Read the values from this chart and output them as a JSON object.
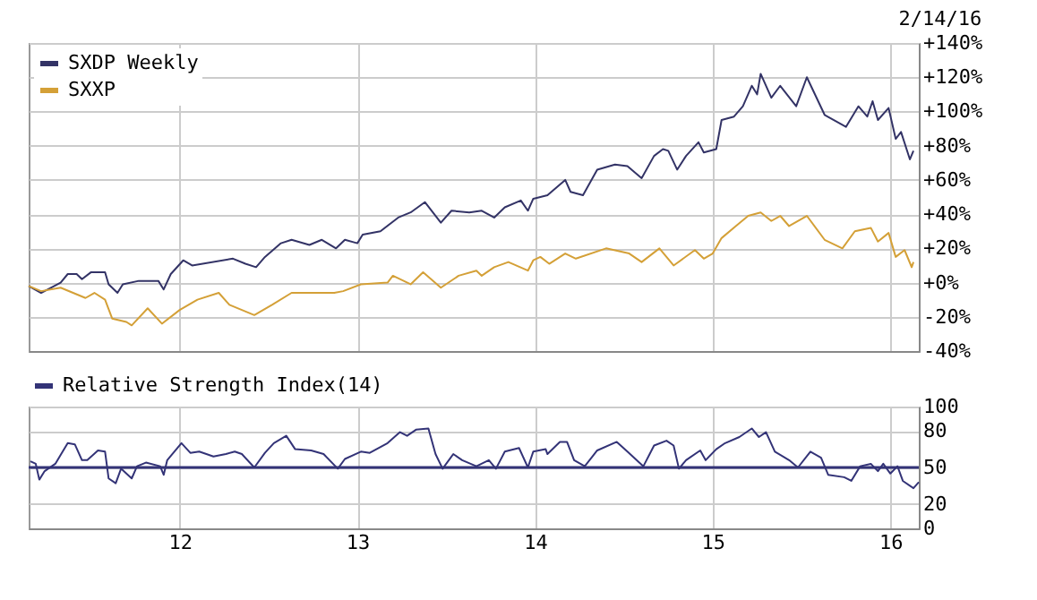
{
  "chart_data": [
    {
      "type": "line",
      "annotations": [
        "2/14/16"
      ],
      "legend": "top left",
      "grid": true,
      "tick_labels": "y",
      "xlim": [
        2011.15,
        2016.16
      ],
      "xticks": [
        {
          "value": 2012,
          "label": null
        },
        {
          "value": 2013,
          "label": null
        },
        {
          "value": 2014,
          "label": null
        },
        {
          "value": 2015,
          "label": null
        },
        {
          "value": 2016,
          "label": null
        }
      ],
      "ylim": [
        -40,
        140
      ],
      "yticks": [
        {
          "value": -40,
          "label": "-40%"
        },
        {
          "value": -20,
          "label": "-20%"
        },
        {
          "value": 0,
          "label": "+0%"
        },
        {
          "value": 20,
          "label": "+20%"
        },
        {
          "value": 40,
          "label": "+40%"
        },
        {
          "value": 60,
          "label": "+60%"
        },
        {
          "value": 80,
          "label": "+80%"
        },
        {
          "value": 100,
          "label": "+100%"
        },
        {
          "value": 120,
          "label": "+120%"
        },
        {
          "value": 140,
          "label": "+140%"
        }
      ],
      "series": [
        {
          "name": "SXDP Weekly",
          "color": "#333366",
          "x": [
            2011.15,
            2011.22,
            2011.33,
            2011.37,
            2011.42,
            2011.45,
            2011.5,
            2011.58,
            2011.6,
            2011.65,
            2011.68,
            2011.77,
            2011.88,
            2011.91,
            2011.95,
            2012.02,
            2012.07,
            2012.3,
            2012.37,
            2012.43,
            2012.48,
            2012.57,
            2012.63,
            2012.73,
            2012.8,
            2012.88,
            2012.93,
            2013.0,
            2013.03,
            2013.13,
            2013.23,
            2013.3,
            2013.38,
            2013.47,
            2013.53,
            2013.63,
            2013.7,
            2013.77,
            2013.83,
            2013.92,
            2013.96,
            2013.99,
            2014.07,
            2014.17,
            2014.2,
            2014.27,
            2014.35,
            2014.45,
            2014.52,
            2014.6,
            2014.67,
            2014.72,
            2014.75,
            2014.8,
            2014.85,
            2014.92,
            2014.95,
            2015.02,
            2015.05,
            2015.12,
            2015.17,
            2015.22,
            2015.25,
            2015.27,
            2015.33,
            2015.38,
            2015.47,
            2015.53,
            2015.63,
            2015.75,
            2015.82,
            2015.87,
            2015.9,
            2015.93,
            2015.99,
            2016.03,
            2016.06,
            2016.11,
            2016.13
          ],
          "values": [
            -2,
            -6,
            0,
            5,
            5,
            2,
            6,
            6,
            -1,
            -6,
            -1,
            1,
            1,
            -4,
            5,
            13,
            10,
            14,
            11,
            9,
            15,
            23,
            25,
            22,
            25,
            20,
            25,
            23,
            28,
            30,
            38,
            41,
            47,
            35,
            42,
            41,
            42,
            38,
            44,
            48,
            42,
            49,
            51,
            60,
            53,
            51,
            66,
            69,
            68,
            61,
            74,
            78,
            77,
            66,
            74,
            82,
            76,
            78,
            95,
            97,
            103,
            115,
            110,
            122,
            108,
            115,
            103,
            120,
            98,
            91,
            103,
            97,
            106,
            95,
            102,
            84,
            88,
            72,
            77
          ]
        },
        {
          "name": "SXXP",
          "color": "#d4a037",
          "x": [
            2011.15,
            2011.22,
            2011.33,
            2011.47,
            2011.52,
            2011.58,
            2011.62,
            2011.7,
            2011.73,
            2011.82,
            2011.9,
            2012.0,
            2012.1,
            2012.22,
            2012.28,
            2012.42,
            2012.52,
            2012.63,
            2012.77,
            2012.87,
            2012.92,
            2013.02,
            2013.17,
            2013.2,
            2013.3,
            2013.37,
            2013.47,
            2013.57,
            2013.67,
            2013.7,
            2013.77,
            2013.85,
            2013.96,
            2013.99,
            2014.03,
            2014.08,
            2014.17,
            2014.23,
            2014.4,
            2014.53,
            2014.6,
            2014.7,
            2014.78,
            2014.9,
            2014.95,
            2015.0,
            2015.05,
            2015.13,
            2015.2,
            2015.27,
            2015.33,
            2015.38,
            2015.43,
            2015.53,
            2015.63,
            2015.73,
            2015.8,
            2015.89,
            2015.93,
            2015.99,
            2016.03,
            2016.08,
            2016.12,
            2016.13
          ],
          "values": [
            -2,
            -5,
            -3,
            -9,
            -6,
            -10,
            -21,
            -23,
            -25,
            -15,
            -24,
            -16,
            -10,
            -6,
            -13,
            -19,
            -13,
            -6,
            -6,
            -6,
            -5,
            -1,
            0,
            4,
            -1,
            6,
            -3,
            4,
            7,
            4,
            9,
            12,
            7,
            13,
            15,
            11,
            17,
            14,
            20,
            17,
            12,
            20,
            10,
            19,
            14,
            17,
            26,
            33,
            39,
            41,
            36,
            39,
            33,
            39,
            25,
            20,
            30,
            32,
            24,
            29,
            15,
            19,
            9,
            12
          ]
        }
      ]
    },
    {
      "type": "line",
      "legend": "top",
      "grid": true,
      "xlim": [
        2011.15,
        2016.16
      ],
      "xticks": [
        {
          "value": 2012,
          "label": "12"
        },
        {
          "value": 2013,
          "label": "13"
        },
        {
          "value": 2014,
          "label": "14"
        },
        {
          "value": 2015,
          "label": "15"
        },
        {
          "value": 2016,
          "label": "16"
        }
      ],
      "ylim": [
        0,
        100
      ],
      "yticks": [
        0,
        20,
        50,
        80,
        100
      ],
      "ref_lines": [
        {
          "axis": "y",
          "value": 50,
          "color": "#333377"
        }
      ],
      "series": [
        {
          "name": "Relative Strength Index(14)",
          "color": "#333377",
          "x": [
            2011.16,
            2011.19,
            2011.21,
            2011.24,
            2011.3,
            2011.37,
            2011.41,
            2011.45,
            2011.48,
            2011.54,
            2011.58,
            2011.6,
            2011.64,
            2011.67,
            2011.73,
            2011.76,
            2011.81,
            2011.89,
            2011.91,
            2011.93,
            2012.01,
            2012.06,
            2012.11,
            2012.19,
            2012.26,
            2012.31,
            2012.35,
            2012.42,
            2012.48,
            2012.53,
            2012.6,
            2012.65,
            2012.74,
            2012.81,
            2012.89,
            2012.93,
            2013.02,
            2013.07,
            2013.17,
            2013.24,
            2013.28,
            2013.33,
            2013.4,
            2013.44,
            2013.48,
            2013.54,
            2013.59,
            2013.67,
            2013.74,
            2013.78,
            2013.83,
            2013.91,
            2013.96,
            2013.99,
            2014.06,
            2014.07,
            2014.14,
            2014.18,
            2014.22,
            2014.28,
            2014.35,
            2014.46,
            2014.52,
            2014.61,
            2014.67,
            2014.74,
            2014.78,
            2014.81,
            2014.85,
            2014.93,
            2014.96,
            2015.02,
            2015.07,
            2015.15,
            2015.22,
            2015.26,
            2015.3,
            2015.35,
            2015.43,
            2015.48,
            2015.55,
            2015.61,
            2015.65,
            2015.74,
            2015.78,
            2015.83,
            2015.89,
            2015.93,
            2015.96,
            2016.0,
            2016.04,
            2016.07,
            2016.13,
            2016.16
          ],
          "values": [
            55,
            53,
            40,
            47,
            53,
            70,
            69,
            56,
            56,
            64,
            63,
            41,
            37,
            49,
            41,
            51,
            54,
            51,
            44,
            56,
            70,
            62,
            63,
            59,
            61,
            63,
            61,
            50,
            62,
            70,
            76,
            65,
            64,
            61,
            49,
            57,
            63,
            62,
            70,
            79,
            76,
            81,
            82,
            61,
            49,
            61,
            56,
            51,
            56,
            49,
            63,
            66,
            50,
            63,
            65,
            61,
            71,
            71,
            56,
            51,
            64,
            71,
            63,
            51,
            68,
            72,
            68,
            49,
            56,
            64,
            56,
            65,
            70,
            75,
            82,
            75,
            79,
            63,
            56,
            50,
            63,
            58,
            44,
            42,
            39,
            51,
            53,
            47,
            53,
            45,
            51,
            39,
            33,
            38
          ]
        }
      ]
    }
  ]
}
